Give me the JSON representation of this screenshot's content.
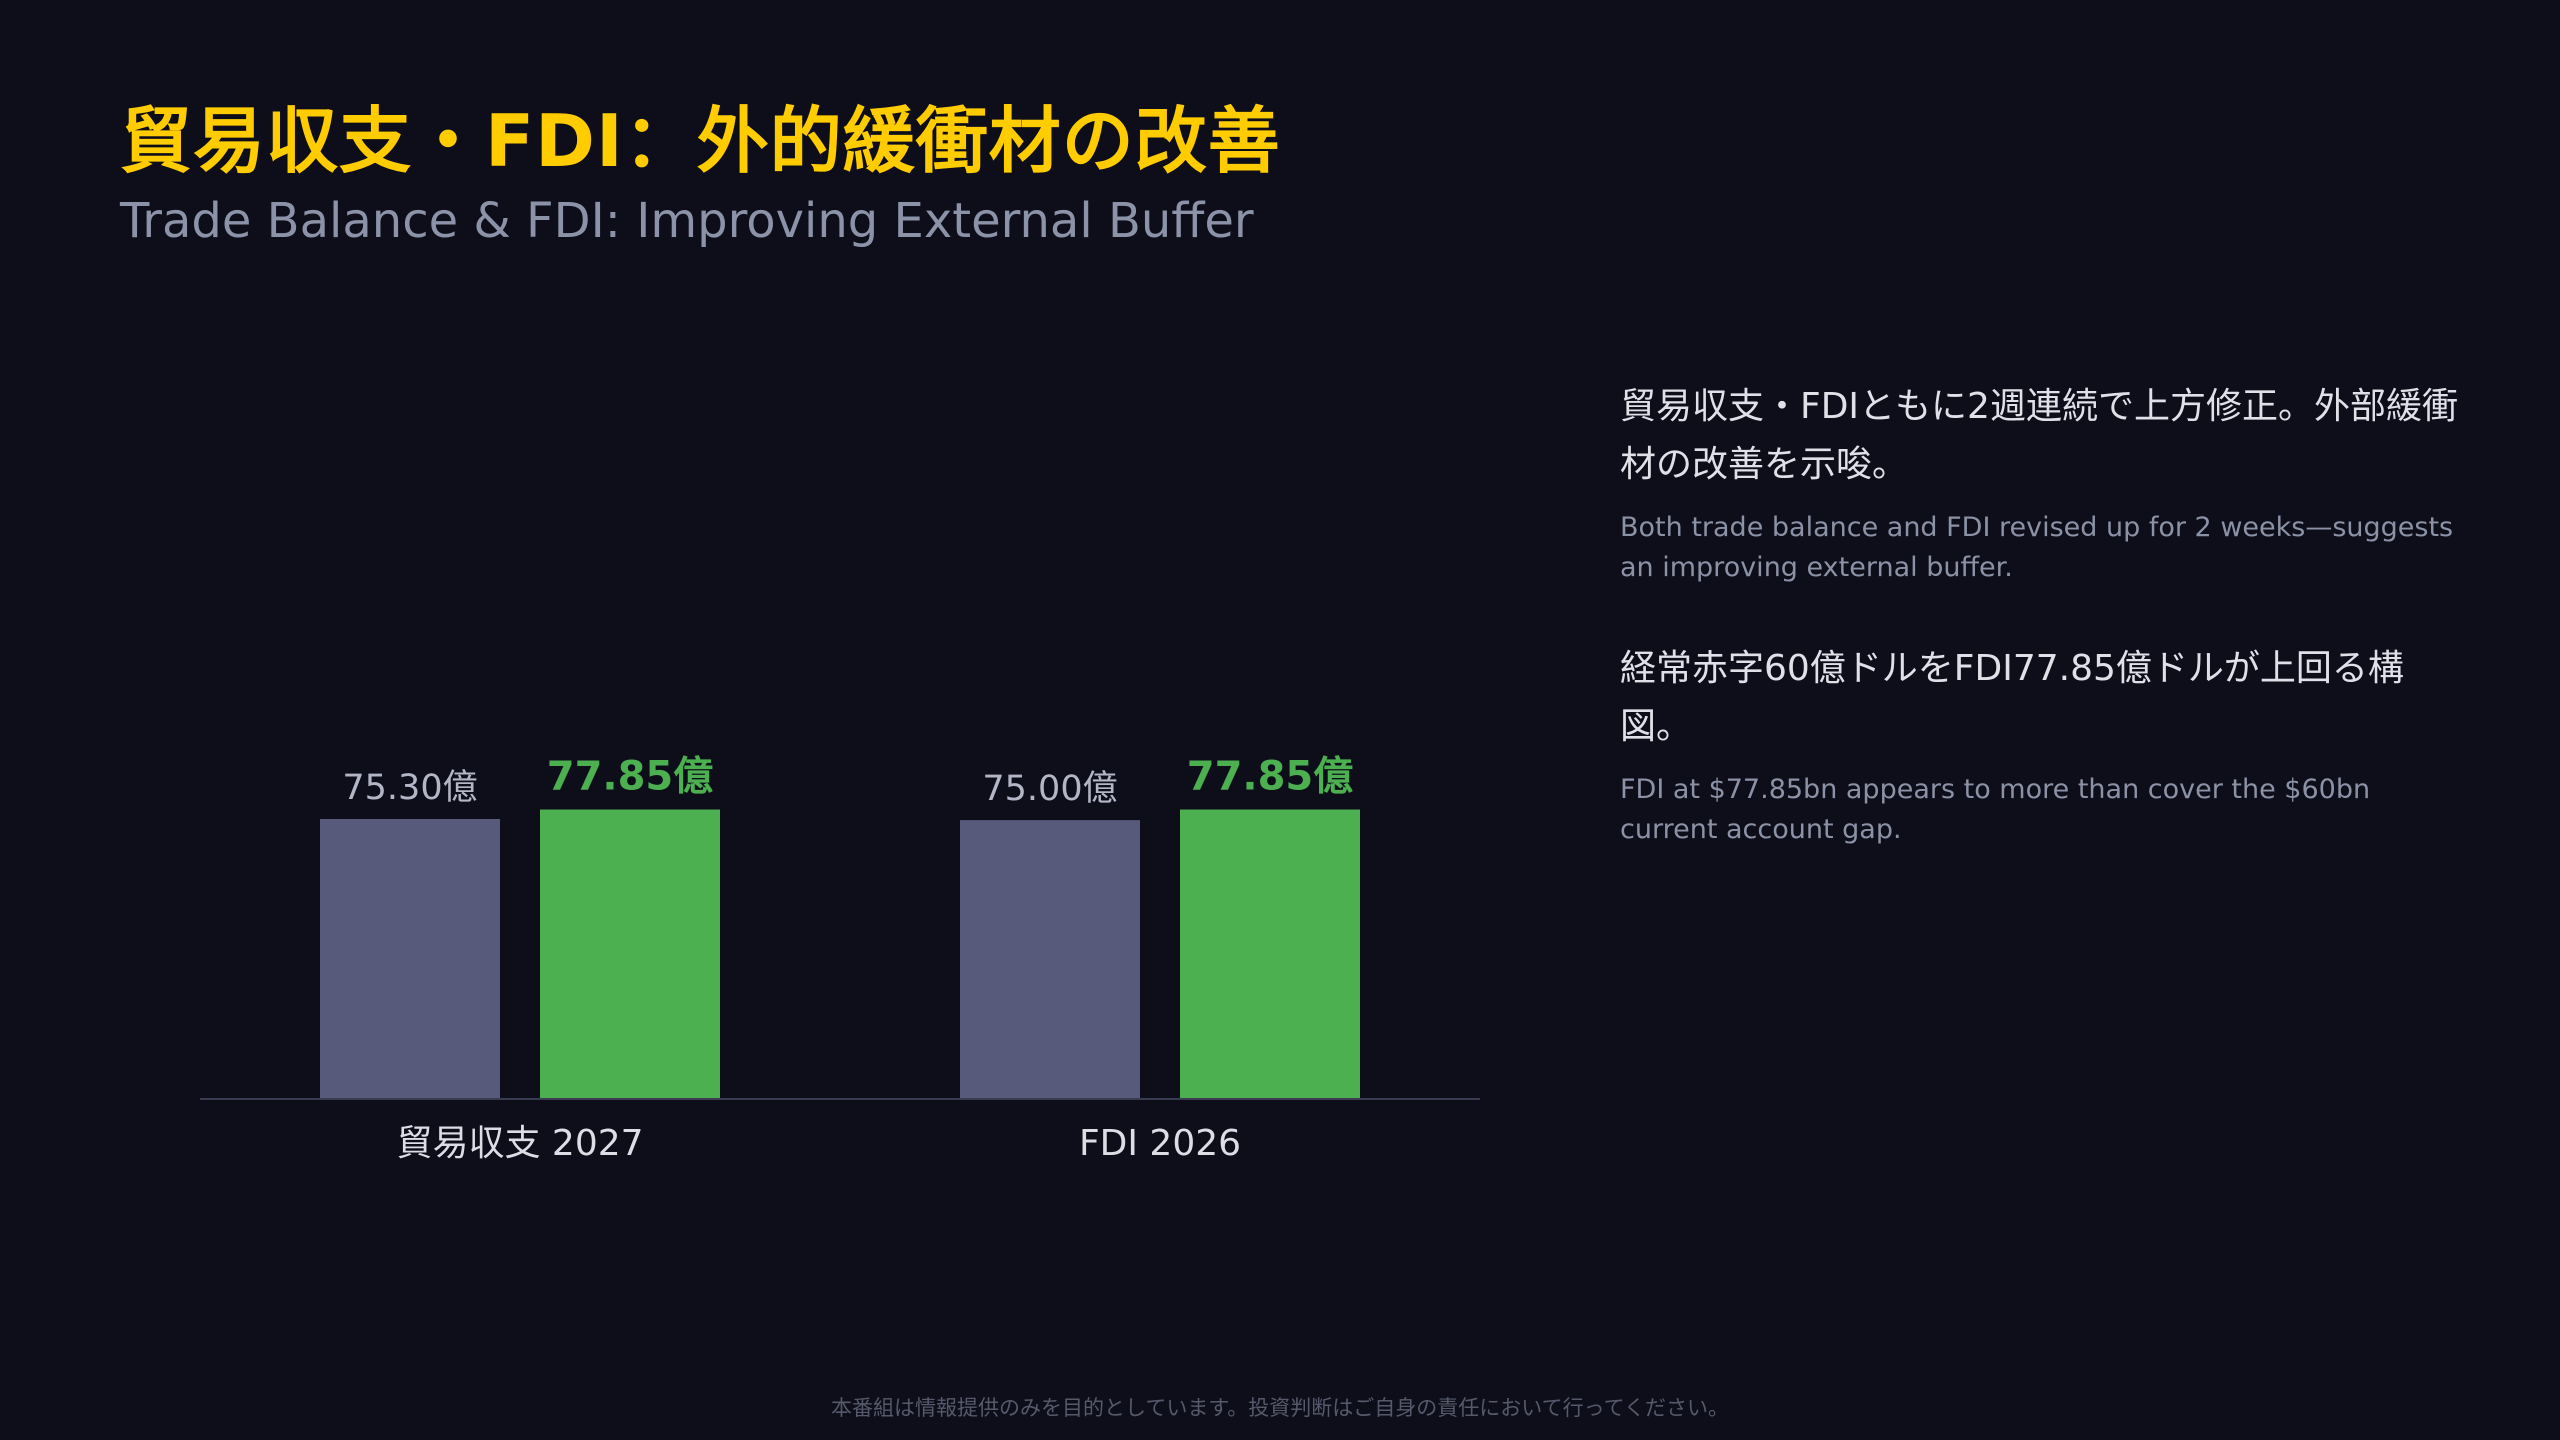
{
  "header": {
    "title": "貿易収支・FDI：外的緩衝材の改善",
    "subtitle": "Trade Balance & FDI: Improving External Buffer"
  },
  "chart_data": {
    "type": "bar",
    "categories": [
      "貿易収支 2027",
      "FDI 2026"
    ],
    "series": [
      {
        "values": [
          75.3,
          75.0
        ],
        "labels": [
          "75.30億",
          "75.00億"
        ],
        "color": "#575a7a"
      },
      {
        "values": [
          77.85,
          77.85
        ],
        "labels": [
          "77.85億",
          "77.85億"
        ],
        "color": "#4caf50"
      }
    ],
    "value_label_colors": [
      "#b3b6c6",
      "#4caf50"
    ],
    "baseline_color": "#3a3d52",
    "grid": false,
    "legend": "none"
  },
  "side": {
    "points": [
      {
        "jp": "貿易収支・FDIともに2週連続で上方修正。外部緩衝材の改善を示唆。",
        "en": "Both trade balance and FDI revised up for 2 weeks—suggests an improving external buffer."
      },
      {
        "jp": "経常赤字60億ドルをFDI77.85億ドルが上回る構図。",
        "en": "FDI at $77.85bn appears to more than cover the $60bn current account gap."
      }
    ]
  },
  "footer": {
    "disclaimer": "本番組は情報提供のみを目的としています。投資判断はご自身の責任において行ってください。"
  }
}
